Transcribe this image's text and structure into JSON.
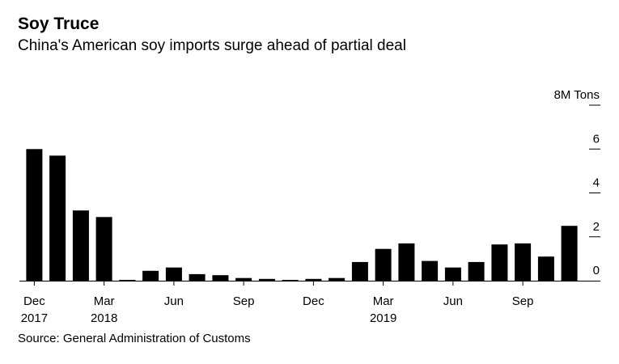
{
  "title": "Soy Truce",
  "subtitle": "China's American soy imports surge ahead of partial deal",
  "source": "Source: General Administration of Customs",
  "chart_data": {
    "type": "bar",
    "title": "Soy Truce",
    "subtitle": "China's American soy imports surge ahead of partial deal",
    "unit": "M Tons",
    "x": [
      "2017-12",
      "2018-01",
      "2018-02",
      "2018-03",
      "2018-04",
      "2018-05",
      "2018-06",
      "2018-07",
      "2018-08",
      "2018-09",
      "2018-10",
      "2018-11",
      "2018-12",
      "2019-01",
      "2019-02",
      "2019-03",
      "2019-04",
      "2019-05",
      "2019-06",
      "2019-07",
      "2019-08",
      "2019-09",
      "2019-10",
      "2019-11"
    ],
    "values": [
      6.0,
      5.7,
      3.2,
      2.9,
      0.02,
      0.45,
      0.6,
      0.3,
      0.25,
      0.12,
      0.08,
      0.02,
      0.08,
      0.12,
      0.85,
      1.45,
      1.7,
      0.9,
      0.6,
      0.85,
      1.65,
      1.7,
      1.1,
      2.5
    ],
    "ylim": [
      0,
      8
    ],
    "yticks": [
      {
        "value": 0,
        "label": "0"
      },
      {
        "value": 2,
        "label": "2"
      },
      {
        "value": 4,
        "label": "4"
      },
      {
        "value": 6,
        "label": "6"
      },
      {
        "value": 8,
        "label": "8M Tons"
      }
    ],
    "xticks": [
      {
        "index": 0,
        "line1": "Dec",
        "line2": "2017"
      },
      {
        "index": 3,
        "line1": "Mar",
        "line2": "2018"
      },
      {
        "index": 6,
        "line1": "Jun",
        "line2": ""
      },
      {
        "index": 9,
        "line1": "Sep",
        "line2": ""
      },
      {
        "index": 12,
        "line1": "Dec",
        "line2": ""
      },
      {
        "index": 15,
        "line1": "Mar",
        "line2": "2019"
      },
      {
        "index": 18,
        "line1": "Jun",
        "line2": ""
      },
      {
        "index": 21,
        "line1": "Sep",
        "line2": ""
      }
    ],
    "grid": false,
    "axis_side": "right",
    "bar_color": "#000000"
  }
}
